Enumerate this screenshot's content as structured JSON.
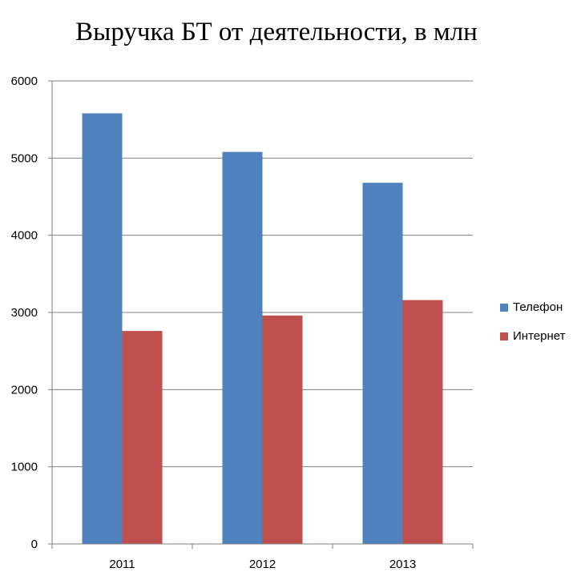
{
  "chart_data": {
    "type": "bar",
    "title": "Выручка БТ от деятельности, в млн",
    "xlabel": "",
    "ylabel": "",
    "categories": [
      "2011",
      "2012",
      "2013"
    ],
    "series": [
      {
        "name": "Телефон",
        "values": [
          5580,
          5080,
          4680
        ],
        "color": "#4F81BD"
      },
      {
        "name": "Интернет",
        "values": [
          2760,
          2960,
          3160
        ],
        "color": "#C0504D"
      }
    ],
    "ylim": [
      0,
      6000
    ],
    "yticks": [
      "0",
      "1000",
      "2000",
      "3000",
      "4000",
      "5000",
      "6000"
    ],
    "grid": true,
    "legend_position": "right"
  }
}
